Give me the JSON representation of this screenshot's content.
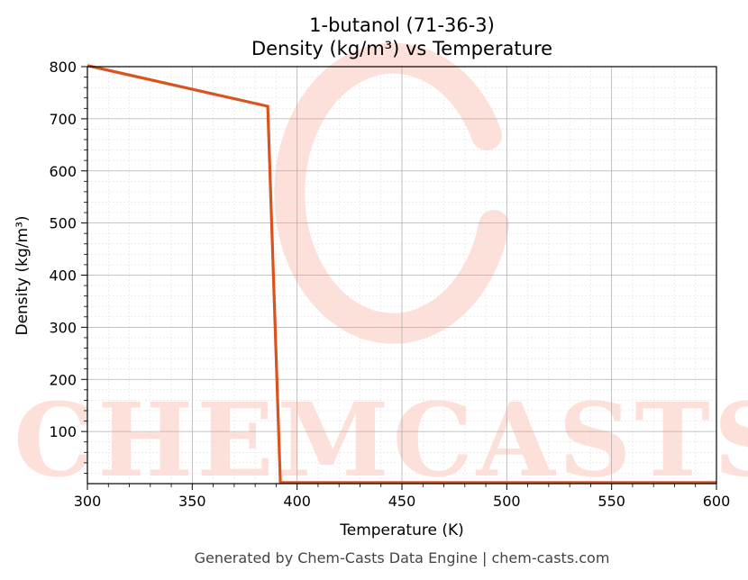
{
  "chart_data": {
    "type": "line",
    "title": "1-butanol (71-36-3)",
    "subtitle": "Density (kg/m³) vs Temperature",
    "xlabel": "Temperature (K)",
    "ylabel": "Density (kg/m³)",
    "xlim": [
      300,
      600
    ],
    "ylim": [
      0,
      800
    ],
    "xticks": [
      300,
      350,
      400,
      450,
      500,
      550,
      600
    ],
    "yticks": [
      100,
      200,
      300,
      400,
      500,
      600,
      700,
      800
    ],
    "grid": true,
    "series": [
      {
        "color": "#d9531e",
        "x": [
          300,
          386,
          392,
          600
        ],
        "y": [
          802,
          724,
          2,
          2
        ]
      }
    ]
  },
  "watermark": {
    "text": "CHEMCASTS",
    "color": "#fde0d9"
  },
  "footer": "Generated by Chem-Casts Data Engine | chem-casts.com"
}
